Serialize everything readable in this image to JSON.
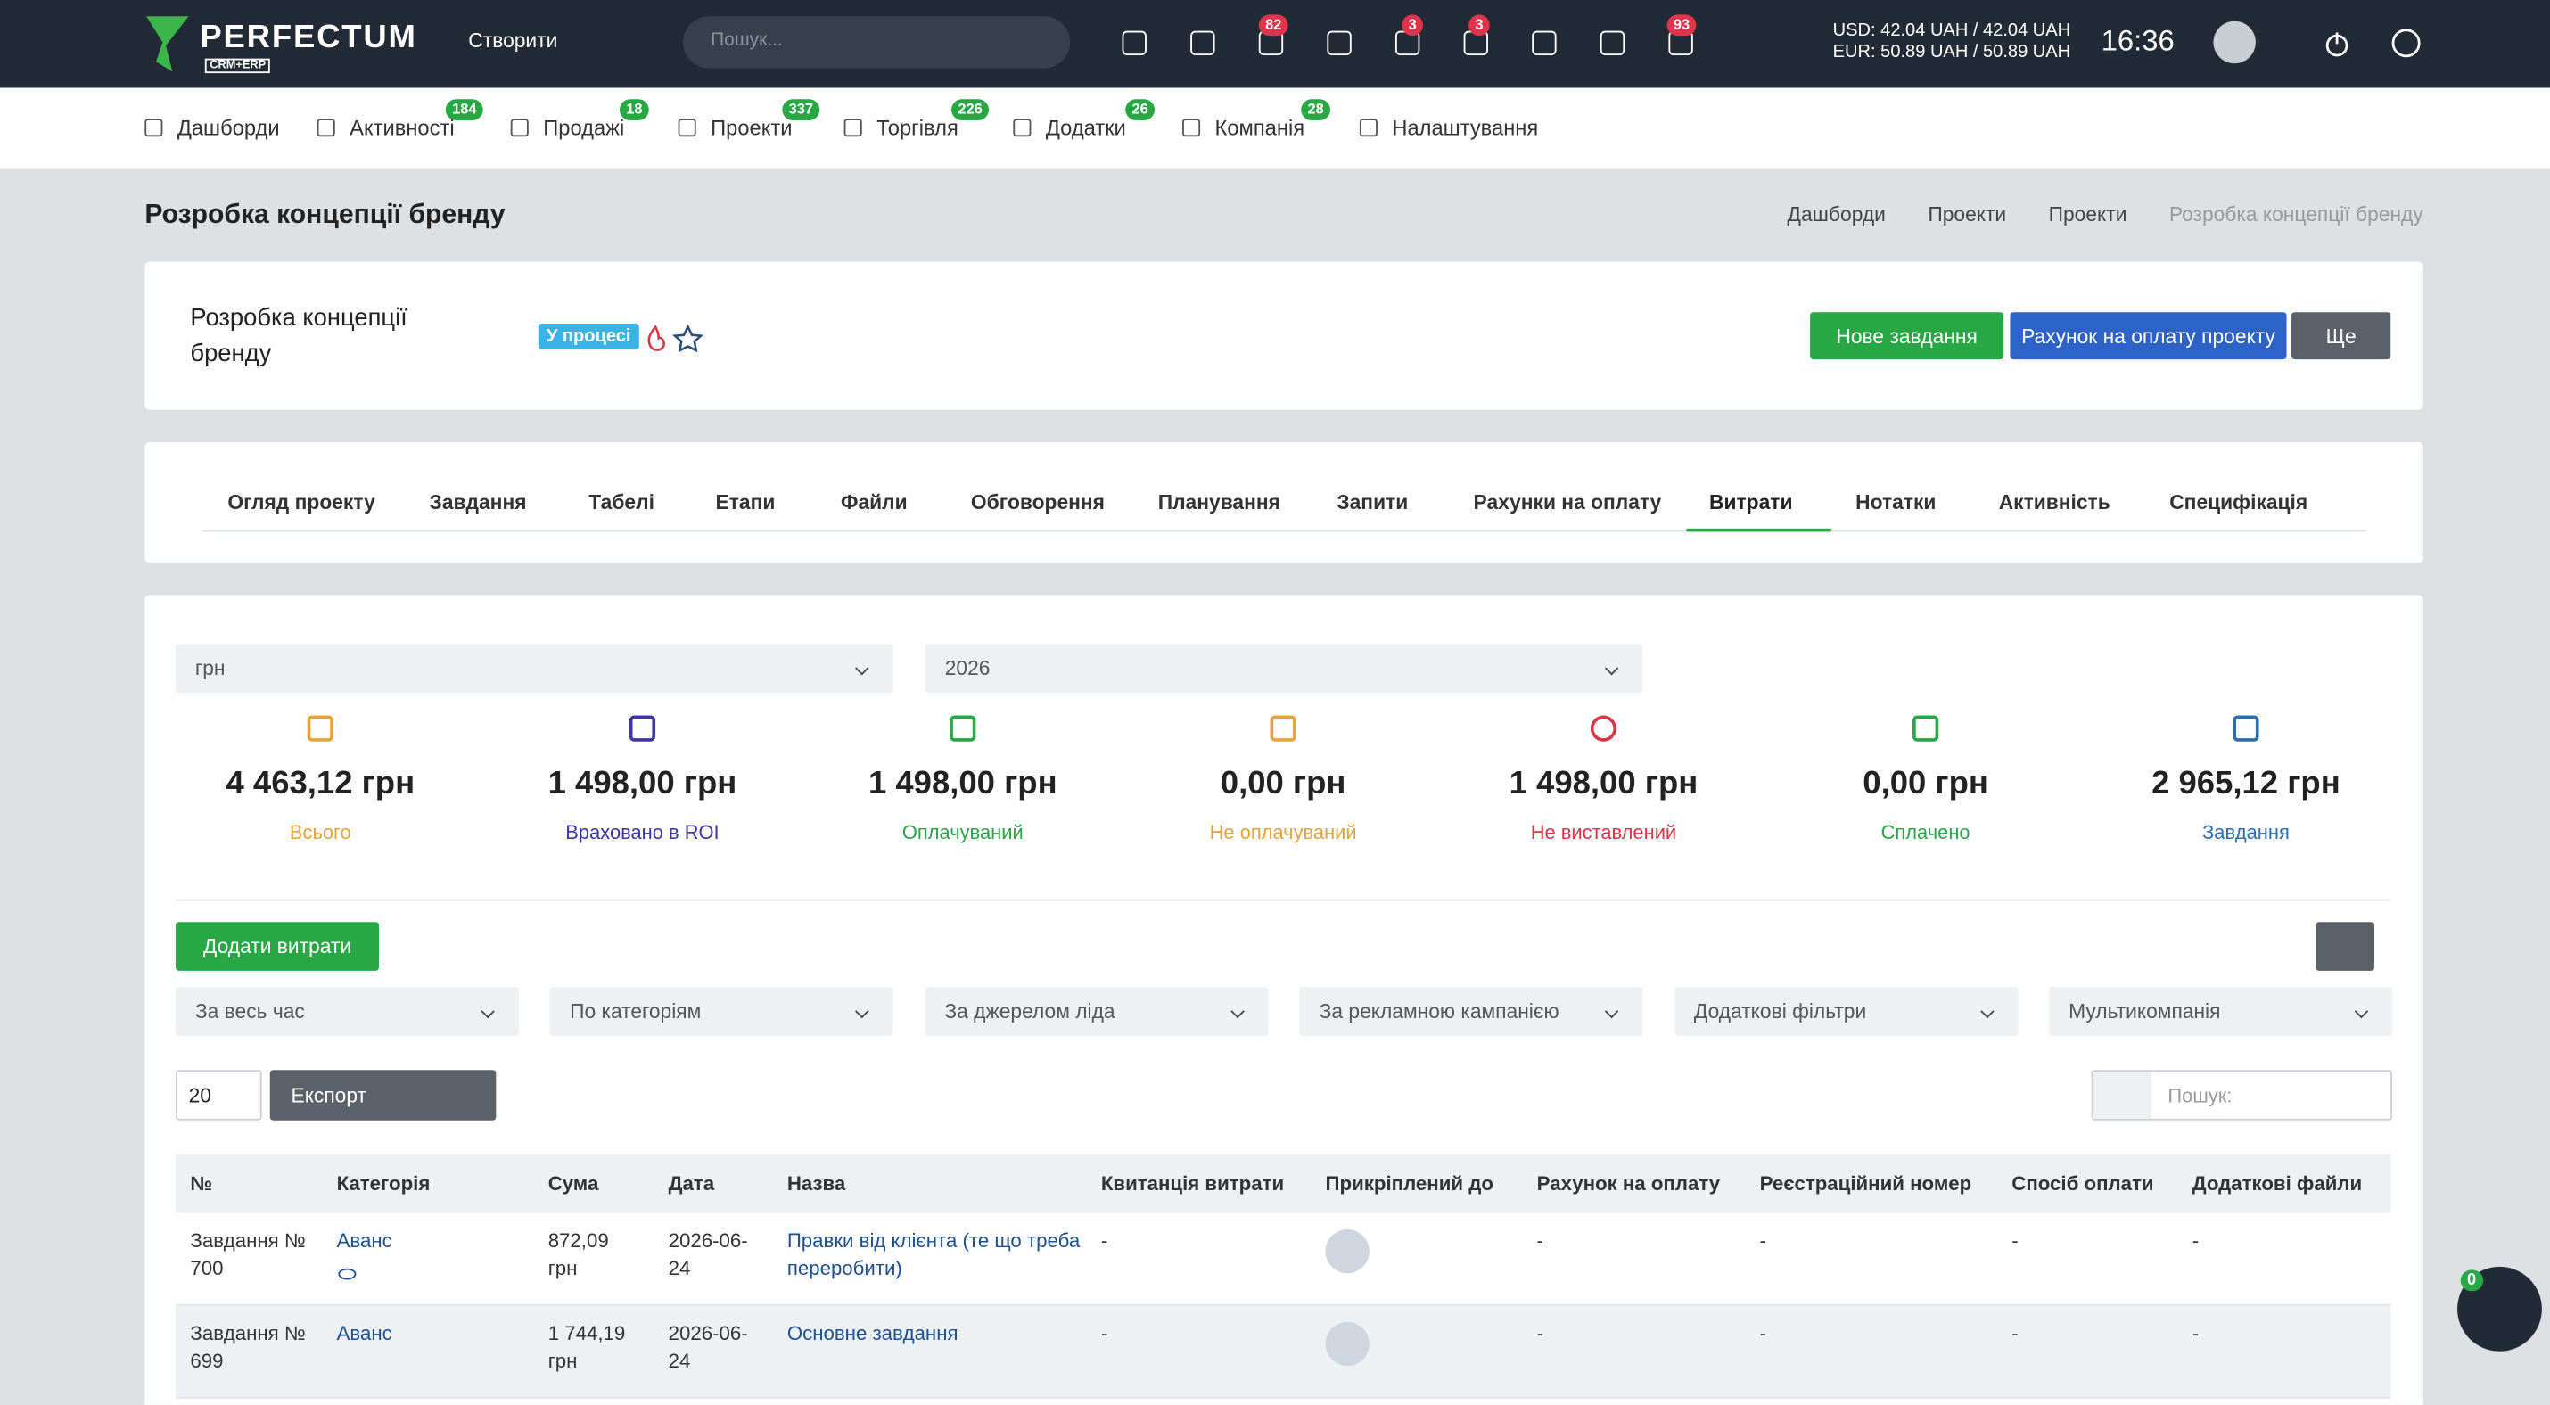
{
  "topbar": {
    "logo": "PERFECTUM",
    "logo_sub": "CRM+ERP",
    "create": "Створити",
    "search_placeholder": "Пошук...",
    "badges": [
      82,
      3,
      3,
      93
    ],
    "rates": [
      "USD: 42.04 UAH / 42.04 UAH",
      "EUR: 50.89 UAH / 50.89 UAH"
    ],
    "time": "16:36"
  },
  "nav": [
    {
      "label": "Дашборди"
    },
    {
      "label": "Активності",
      "badge": 184
    },
    {
      "label": "Продажі",
      "badge": 18
    },
    {
      "label": "Проекти",
      "badge": 337
    },
    {
      "label": "Торгівля",
      "badge": 226
    },
    {
      "label": "Додатки",
      "badge": 26
    },
    {
      "label": "Компанія",
      "badge": 28
    },
    {
      "label": "Налаштування"
    }
  ],
  "page_title": "Розробка концепції бренду",
  "breadcrumbs": [
    "Дашборди",
    "Проекти",
    "Проекти",
    "Розробка концепції бренду"
  ],
  "project": {
    "name": "Розробка концепції бренду",
    "status": "У процесі",
    "buttons": [
      "Нове завдання",
      "Рахунок на оплату проекту",
      "Ще"
    ]
  },
  "tabs": [
    "Огляд проекту",
    "Завдання",
    "Табелі",
    "Етапи",
    "Файли",
    "Обговорення",
    "Планування",
    "Запити",
    "Рахунки на оплату",
    "Витрати",
    "Нотатки",
    "Активність",
    "Специфікація"
  ],
  "filters": {
    "currency": "грн",
    "year": "2026"
  },
  "stats": [
    {
      "value": "4 463,12 грн",
      "label": "Всього",
      "color": "#e8a23a"
    },
    {
      "value": "1 498,00 грн",
      "label": "Враховано в ROI",
      "color": "#3d35a8"
    },
    {
      "value": "1 498,00 грн",
      "label": "Оплачуваний",
      "color": "#28a745"
    },
    {
      "value": "0,00 грн",
      "label": "Не оплачуваний",
      "color": "#e8a23a"
    },
    {
      "value": "1 498,00 грн",
      "label": "Не виставлений",
      "color": "#dc3545"
    },
    {
      "value": "0,00 грн",
      "label": "Сплачено",
      "color": "#28a745"
    },
    {
      "value": "2 965,12 грн",
      "label": "Завдання",
      "color": "#2a6fb0"
    }
  ],
  "add_button": "Додати витрати",
  "dropdowns": [
    "За весь час",
    "По категоріям",
    "За джерелом ліда",
    "За рекламною кампанією",
    "Додаткові фільтри",
    "Мультикомпанія"
  ],
  "page_size": "20",
  "export": "Експорт",
  "search_placeholder": "Пошук:",
  "table": {
    "columns": [
      "№",
      "Категорія",
      "Сума",
      "Дата",
      "Назва",
      "Квитанція витрати",
      "Прикріплений до",
      "Рахунок на оплату",
      "Реєстраційний номер",
      "Спосіб оплати",
      "Додаткові файли"
    ],
    "rows": [
      {
        "number": "Завдання № 700",
        "category": "Аванс",
        "amount": "872,09 грн",
        "date": "2026-06-24",
        "name": "Правки від клієнта (те що треба переробити)",
        "receipt": "-",
        "invoice": "-",
        "reg_number": "-",
        "payment_method": "-",
        "files": "-"
      },
      {
        "number": "Завдання № 699",
        "category": "Аванс",
        "amount": "1 744,19 грн",
        "date": "2026-06-24",
        "name": "Основне завдання",
        "receipt": "-",
        "invoice": "-",
        "reg_number": "-",
        "payment_method": "-",
        "files": "-"
      }
    ]
  },
  "chat_badge": 0
}
